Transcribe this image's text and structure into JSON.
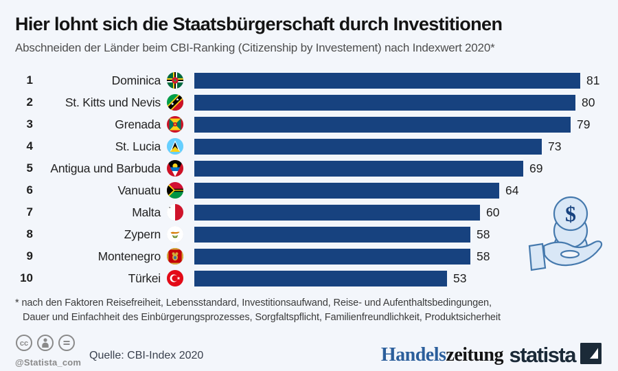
{
  "header": {
    "title": "Hier lohnt sich die Staatsbürgerschaft durch Investitionen",
    "subtitle": "Abschneiden der Länder beim CBI-Ranking (Citizenship by Investement) nach Indexwert 2020*"
  },
  "chart_data": {
    "type": "bar",
    "orientation": "horizontal",
    "title": "Hier lohnt sich die Staatsbürgerschaft durch Investitionen",
    "subtitle": "Abschneiden der Länder beim CBI-Ranking (Citizenship by Investement) nach Indexwert 2020*",
    "ranks": [
      1,
      2,
      3,
      4,
      5,
      6,
      7,
      8,
      9,
      10
    ],
    "categories": [
      "Dominica",
      "St. Kitts und Nevis",
      "Grenada",
      "St. Lucia",
      "Antigua und Barbuda",
      "Vanuatu",
      "Malta",
      "Zypern",
      "Montenegro",
      "Türkei"
    ],
    "values": [
      81,
      80,
      79,
      73,
      69,
      64,
      60,
      58,
      58,
      53
    ],
    "flags": [
      "dominica",
      "st-kitts-und-nevis",
      "grenada",
      "st-lucia",
      "antigua-und-barbuda",
      "vanuatu",
      "malta",
      "zypern",
      "montenegro",
      "tuerkei"
    ],
    "xlim": [
      0,
      85
    ],
    "bar_color": "#17427f",
    "value_labels": true,
    "grid": false,
    "legend": false
  },
  "footnote": {
    "line1": "* nach den Faktoren Reisefreiheit, Lebensstandard, Investitionsaufwand, Reise- und Aufenthaltsbedingungen,",
    "line2": "Dauer und Einfachheit des Einbürgerungsprozesses, Sorgfaltspflicht, Familienfreundlichkeit, Produktsicherheit"
  },
  "decoration": {
    "coin_symbol": "$"
  },
  "footer": {
    "license": {
      "handle": "@Statista_com",
      "icons": [
        "cc",
        "by",
        "nd"
      ]
    },
    "source": "Quelle: CBI-Index 2020",
    "partner": {
      "part_blue": "Handels",
      "part_black": "zeitung"
    },
    "brand": "statista"
  },
  "colors": {
    "background": "#f3f6fb",
    "bar": "#17427f",
    "deco_fill": "#d9e7f6",
    "deco_stroke": "#4579ad",
    "brand_navy": "#1b2a38",
    "partner_blue": "#2b5e9b"
  }
}
